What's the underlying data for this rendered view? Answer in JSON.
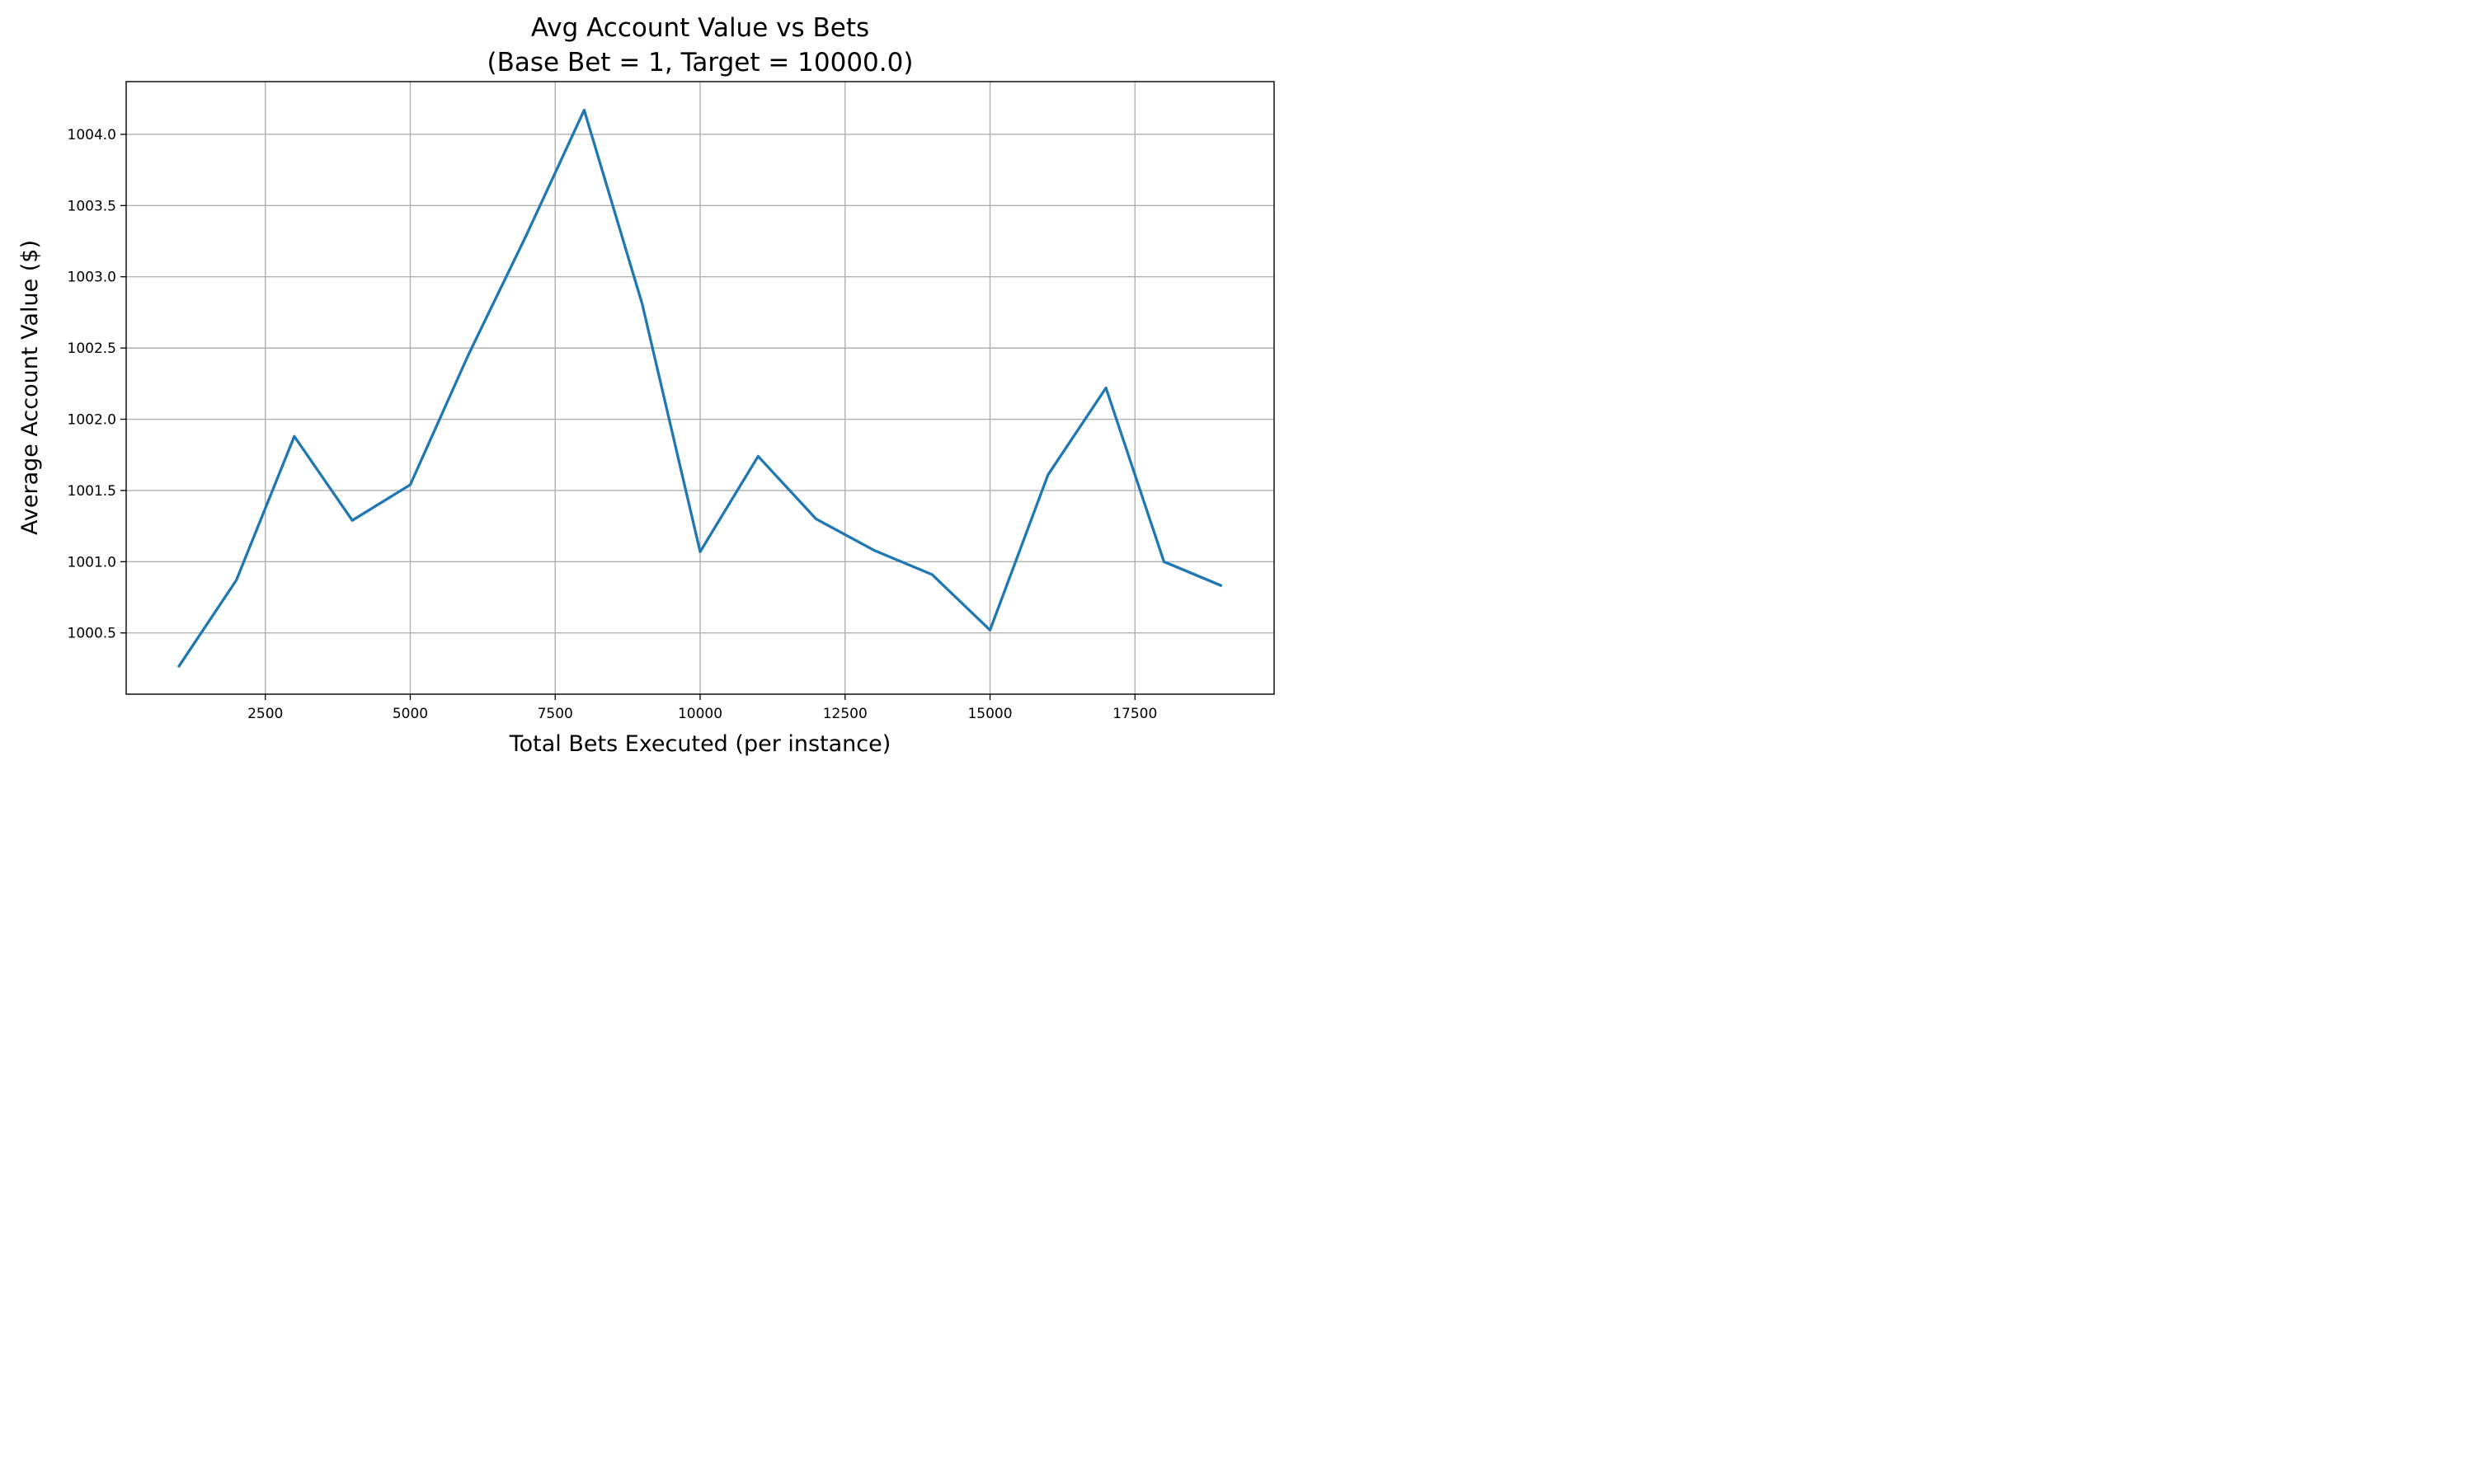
{
  "chart_data": {
    "type": "line",
    "title": "Avg Account Value vs Bets",
    "subtitle": "(Base Bet = 1, Target = 10000.0)",
    "xlabel": "Total Bets Executed (per instance)",
    "ylabel": "Average Account Value ($)",
    "xlim": [
      100,
      19900
    ],
    "ylim": [
      1000.07,
      1004.37
    ],
    "x_ticks": [
      2500,
      5000,
      7500,
      10000,
      12500,
      15000,
      17500
    ],
    "y_ticks": [
      1000.5,
      1001.0,
      1001.5,
      1002.0,
      1002.5,
      1003.0,
      1003.5,
      1004.0
    ],
    "x_tick_labels": [
      "2500",
      "5000",
      "7500",
      "10000",
      "12500",
      "15000",
      "17500"
    ],
    "y_tick_labels": [
      "1000.5",
      "1001.0",
      "1001.5",
      "1002.0",
      "1002.5",
      "1003.0",
      "1003.5",
      "1004.0"
    ],
    "grid": true,
    "series": [
      {
        "color": "#1f77b4",
        "x": [
          1000,
          2000,
          3000,
          4000,
          5000,
          6000,
          7000,
          8000,
          9000,
          10000,
          11000,
          12000,
          13000,
          14000,
          15000,
          16000,
          17000,
          18000,
          19000
        ],
        "values": [
          1000.26,
          1000.87,
          1001.88,
          1001.29,
          1001.54,
          1002.45,
          1003.29,
          1004.17,
          1002.81,
          1001.07,
          1001.74,
          1001.3,
          1001.08,
          1000.91,
          1000.52,
          1001.61,
          1002.22,
          1001.0,
          1000.83
        ]
      }
    ]
  }
}
